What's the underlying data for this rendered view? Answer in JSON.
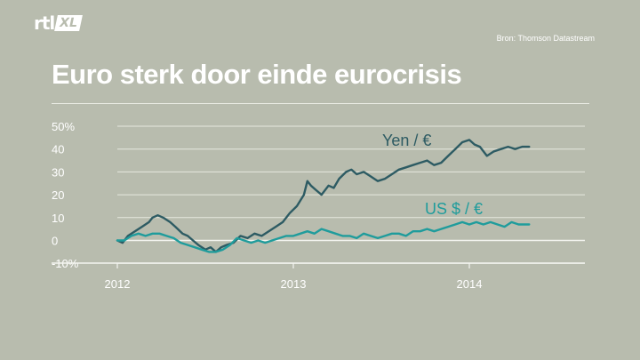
{
  "header": {
    "logo_main": "rtl",
    "logo_sub": "XL",
    "source": "Bron: Thomson Datastream",
    "title": "Euro sterk door einde eurocrisis"
  },
  "colors": {
    "background": "#b8bcae",
    "yen_series": "#2d5b63",
    "usd_series": "#1f9c9c",
    "grid": "#e6e8df"
  },
  "chart_data": {
    "type": "line",
    "title": "Euro sterk door einde eurocrisis",
    "xlabel": "",
    "ylabel": "",
    "ylim": [
      -10,
      50
    ],
    "xlim": [
      2012.0,
      2014.4
    ],
    "grid": true,
    "y_ticks": [
      -10,
      0,
      10,
      20,
      30,
      40,
      50
    ],
    "y_tick_labels": [
      "-10%",
      "0",
      "10",
      "20",
      "30",
      "40",
      "50%"
    ],
    "x_ticks": [
      2012,
      2013,
      2014
    ],
    "x_tick_labels": [
      "2012",
      "2013",
      "2014"
    ],
    "series": [
      {
        "name": "Yen / €",
        "x": [
          2012.0,
          2012.03,
          2012.06,
          2012.1,
          2012.14,
          2012.18,
          2012.2,
          2012.23,
          2012.26,
          2012.3,
          2012.33,
          2012.37,
          2012.4,
          2012.43,
          2012.46,
          2012.5,
          2012.53,
          2012.56,
          2012.59,
          2012.62,
          2012.66,
          2012.7,
          2012.74,
          2012.78,
          2012.82,
          2012.86,
          2012.9,
          2012.94,
          2012.98,
          2013.02,
          2013.06,
          2013.08,
          2013.1,
          2013.13,
          2013.16,
          2013.2,
          2013.23,
          2013.26,
          2013.3,
          2013.33,
          2013.36,
          2013.4,
          2013.44,
          2013.48,
          2013.52,
          2013.56,
          2013.6,
          2013.64,
          2013.68,
          2013.72,
          2013.76,
          2013.8,
          2013.84,
          2013.88,
          2013.92,
          2013.96,
          2014.0,
          2014.03,
          2014.06,
          2014.1,
          2014.14,
          2014.18,
          2014.22,
          2014.26,
          2014.3,
          2014.34
        ],
        "values": [
          0,
          -1,
          2,
          4,
          6,
          8,
          10,
          11,
          10,
          8,
          6,
          3,
          2,
          0,
          -2,
          -4,
          -3,
          -5,
          -3,
          -2,
          -1,
          2,
          1,
          3,
          2,
          4,
          6,
          8,
          12,
          15,
          20,
          26,
          24,
          22,
          20,
          24,
          23,
          27,
          30,
          31,
          29,
          30,
          28,
          26,
          27,
          29,
          31,
          32,
          33,
          34,
          35,
          33,
          34,
          37,
          40,
          43,
          44,
          42,
          41,
          37,
          39,
          40,
          41,
          40,
          41,
          41
        ]
      },
      {
        "name": "US $ / €",
        "x": [
          2012.0,
          2012.04,
          2012.08,
          2012.12,
          2012.16,
          2012.2,
          2012.24,
          2012.28,
          2012.32,
          2012.36,
          2012.4,
          2012.44,
          2012.48,
          2012.52,
          2012.56,
          2012.6,
          2012.64,
          2012.68,
          2012.72,
          2012.76,
          2012.8,
          2012.84,
          2012.88,
          2012.92,
          2012.96,
          2013.0,
          2013.04,
          2013.08,
          2013.12,
          2013.16,
          2013.2,
          2013.24,
          2013.28,
          2013.32,
          2013.36,
          2013.4,
          2013.44,
          2013.48,
          2013.52,
          2013.56,
          2013.6,
          2013.64,
          2013.68,
          2013.72,
          2013.76,
          2013.8,
          2013.84,
          2013.88,
          2013.92,
          2013.96,
          2014.0,
          2014.04,
          2014.08,
          2014.12,
          2014.16,
          2014.2,
          2014.24,
          2014.28,
          2014.32,
          2014.34
        ],
        "values": [
          0,
          0,
          2,
          3,
          2,
          3,
          3,
          2,
          1,
          -1,
          -2,
          -3,
          -4,
          -5,
          -5,
          -4,
          -2,
          1,
          0,
          -1,
          0,
          -1,
          0,
          1,
          2,
          2,
          3,
          4,
          3,
          5,
          4,
          3,
          2,
          2,
          1,
          3,
          2,
          1,
          2,
          3,
          3,
          2,
          4,
          4,
          5,
          4,
          5,
          6,
          7,
          8,
          7,
          8,
          7,
          8,
          7,
          6,
          8,
          7,
          7,
          7
        ]
      }
    ]
  }
}
